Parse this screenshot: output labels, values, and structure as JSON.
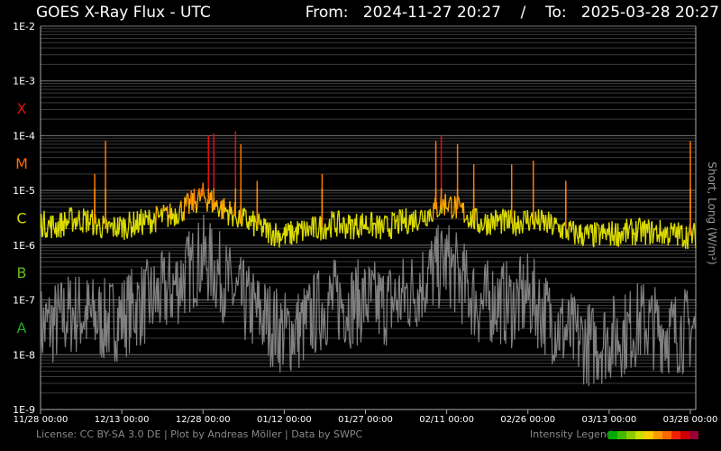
{
  "title": "GOES X-Ray Flux - UTC",
  "range": {
    "from_label": "From:",
    "from": "2024-11-27 20:27",
    "separator": "/",
    "to_label": "To:",
    "to": "2025-03-28 20:27"
  },
  "footer": "License: CC BY-SA 3.0 DE | Plot by Andreas Möller | Data by SWPC",
  "legend_label": "Intensity Legend",
  "legend_colors": [
    "#00aa00",
    "#44bb00",
    "#88cc00",
    "#ccdd00",
    "#ffcc00",
    "#ff9900",
    "#ff6600",
    "#ee2200",
    "#cc0000",
    "#990033"
  ],
  "chart_data": {
    "type": "line",
    "title": "GOES X-Ray Flux - UTC",
    "ylabel": "Short, Long (W/m²)",
    "yscale": "log",
    "ylim": [
      1e-09,
      0.01
    ],
    "y_tick_labels": [
      "1E-2",
      "1E-3",
      "1E-4",
      "1E-5",
      "1E-6",
      "1E-7",
      "1E-8",
      "1E-9"
    ],
    "class_labels": [
      {
        "label": "X",
        "flux": 0.001,
        "color": "#dd1111"
      },
      {
        "label": "M",
        "flux": 0.0001,
        "color": "#ff6600"
      },
      {
        "label": "C",
        "flux": 1e-05,
        "color": "#dddd00"
      },
      {
        "label": "B",
        "flux": 1e-06,
        "color": "#66bb22"
      },
      {
        "label": "A",
        "flux": 1e-07,
        "color": "#22aa22"
      }
    ],
    "xlim": [
      "2024-11-28",
      "2025-03-29"
    ],
    "x_tick_labels": [
      "11/28 00:00",
      "12/13 00:00",
      "12/28 00:00",
      "01/12 00:00",
      "01/27 00:00",
      "02/11 00:00",
      "02/26 00:00",
      "03/13 00:00",
      "03/28 00:00"
    ],
    "grid": true,
    "series": [
      {
        "name": "Long",
        "color": "#dddd00",
        "x": [
          "11/28",
          "12/01",
          "12/04",
          "12/07",
          "12/10",
          "12/13",
          "12/16",
          "12/19",
          "12/22",
          "12/25",
          "12/28",
          "12/31",
          "01/03",
          "01/06",
          "01/09",
          "01/12",
          "01/15",
          "01/18",
          "01/21",
          "01/24",
          "01/27",
          "01/30",
          "02/02",
          "02/05",
          "02/08",
          "02/11",
          "02/14",
          "02/17",
          "02/20",
          "02/23",
          "02/26",
          "03/01",
          "03/04",
          "03/07",
          "03/10",
          "03/13",
          "03/16",
          "03/19",
          "03/22",
          "03/25",
          "03/28"
        ],
        "values": [
          2.5e-06,
          2.2e-06,
          3e-06,
          2.8e-06,
          2e-06,
          2.2e-06,
          2.5e-06,
          3e-06,
          3.5e-06,
          5e-06,
          8e-06,
          5e-06,
          3.5e-06,
          2.5e-06,
          1.8e-06,
          1.5e-06,
          1.8e-06,
          2e-06,
          2.5e-06,
          2.2e-06,
          2.5e-06,
          2e-06,
          2.5e-06,
          3e-06,
          4e-06,
          6e-06,
          4e-06,
          2.5e-06,
          2.8e-06,
          2.5e-06,
          3e-06,
          2.5e-06,
          2e-06,
          1.6e-06,
          1.5e-06,
          1.6e-06,
          1.7e-06,
          1.8e-06,
          1.7e-06,
          1.6e-06,
          1.5e-06
        ]
      },
      {
        "name": "Short",
        "color": "#808080",
        "x": [
          "11/28",
          "12/01",
          "12/04",
          "12/07",
          "12/10",
          "12/13",
          "12/16",
          "12/19",
          "12/22",
          "12/25",
          "12/28",
          "12/31",
          "01/03",
          "01/06",
          "01/09",
          "01/12",
          "01/15",
          "01/18",
          "01/21",
          "01/24",
          "01/27",
          "01/30",
          "02/02",
          "02/05",
          "02/08",
          "02/11",
          "02/14",
          "02/17",
          "02/20",
          "02/23",
          "02/26",
          "03/01",
          "03/04",
          "03/07",
          "03/10",
          "03/13",
          "03/16",
          "03/19",
          "03/22",
          "03/25",
          "03/28"
        ],
        "values": [
          3e-08,
          4e-08,
          6e-08,
          5e-08,
          4e-08,
          5e-08,
          8e-08,
          1e-07,
          1.5e-07,
          3e-07,
          6e-07,
          3e-07,
          1.2e-07,
          7e-08,
          4e-08,
          2.5e-08,
          3e-08,
          6e-08,
          1e-07,
          8e-08,
          1e-07,
          8e-08,
          1e-07,
          1.5e-07,
          3e-07,
          5e-07,
          2e-07,
          8e-08,
          1e-07,
          8e-08,
          1.2e-07,
          6e-08,
          3e-08,
          2e-08,
          1.5e-08,
          2e-08,
          2.5e-08,
          4e-08,
          3e-08,
          2.5e-08,
          3e-08
        ]
      }
    ],
    "flares": [
      {
        "date": "12/08",
        "flux": 2e-05
      },
      {
        "date": "12/10",
        "flux": 8e-05
      },
      {
        "date": "12/29",
        "flux": 0.0001
      },
      {
        "date": "12/30",
        "flux": 0.00011
      },
      {
        "date": "01/03",
        "flux": 0.00012
      },
      {
        "date": "01/04",
        "flux": 7e-05
      },
      {
        "date": "01/07",
        "flux": 1.5e-05
      },
      {
        "date": "01/19",
        "flux": 2e-05
      },
      {
        "date": "02/09",
        "flux": 8e-05
      },
      {
        "date": "02/10",
        "flux": 0.0001
      },
      {
        "date": "02/13",
        "flux": 7e-05
      },
      {
        "date": "02/16",
        "flux": 3e-05
      },
      {
        "date": "02/23",
        "flux": 3e-05
      },
      {
        "date": "02/27",
        "flux": 3.5e-05
      },
      {
        "date": "03/05",
        "flux": 1.5e-05
      },
      {
        "date": "03/28",
        "flux": 8e-05
      }
    ]
  }
}
